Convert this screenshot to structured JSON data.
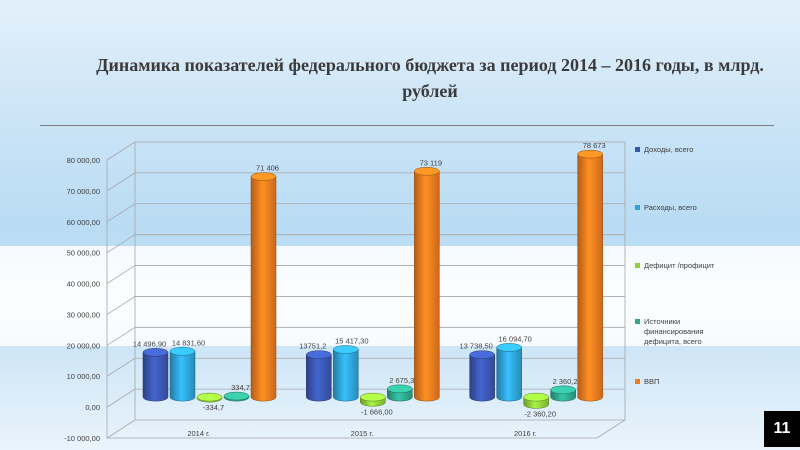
{
  "title": "Динамика показателей федерального бюджета за  период 2014 – 2016 годы,  в млрд. рублей",
  "slide_number": "11",
  "chart_data": {
    "type": "bar",
    "title": "Динамика показателей федерального бюджета за  период 2014 – 2016 годы,  в млрд. рублей",
    "categories": [
      "2014 г.",
      "2015 г.",
      "2016 г."
    ],
    "ylim": [
      -10000,
      80000
    ],
    "y_ticks": [
      "80 000,00",
      "70 000,00",
      "60 000,00",
      "50 000,00",
      "40 000,00",
      "30 000,00",
      "20 000,00",
      "10 000,00",
      "0,00",
      "-10 000,00"
    ],
    "y_tick_values": [
      80000,
      70000,
      60000,
      50000,
      40000,
      30000,
      20000,
      10000,
      0,
      -10000
    ],
    "legend_position": "right",
    "series": [
      {
        "name": "Доходы, всего",
        "values": [
          14496.9,
          13751.2,
          13738.5
        ],
        "labels": [
          "14 496,90",
          "13751,2",
          "13 738,50"
        ],
        "color": "#3a56b0"
      },
      {
        "name": "Расходы, всего",
        "values": [
          14831.6,
          15417.3,
          16094.7
        ],
        "labels": [
          "14 831,60",
          "15 417,30",
          "16 094,70"
        ],
        "color": "#2fa3d6"
      },
      {
        "name": "Дефицит /профицит",
        "values": [
          -334.7,
          -1666.0,
          -2360.2
        ],
        "labels": [
          "-334,7",
          "-1 666,00",
          "-2 360,20"
        ],
        "color": "#8fcf3a"
      },
      {
        "name": "Источники финансирования дефицита, всего",
        "values": [
          334.7,
          2675.3,
          2360.2
        ],
        "labels": [
          "334,7",
          "2 675,30",
          "2 360,20"
        ],
        "color": "#2fa88e"
      },
      {
        "name": "ВВП",
        "values": [
          71406,
          73119,
          78673
        ],
        "labels": [
          "71 406",
          "73 119",
          "78 673"
        ],
        "color": "#f07a1e"
      }
    ]
  }
}
